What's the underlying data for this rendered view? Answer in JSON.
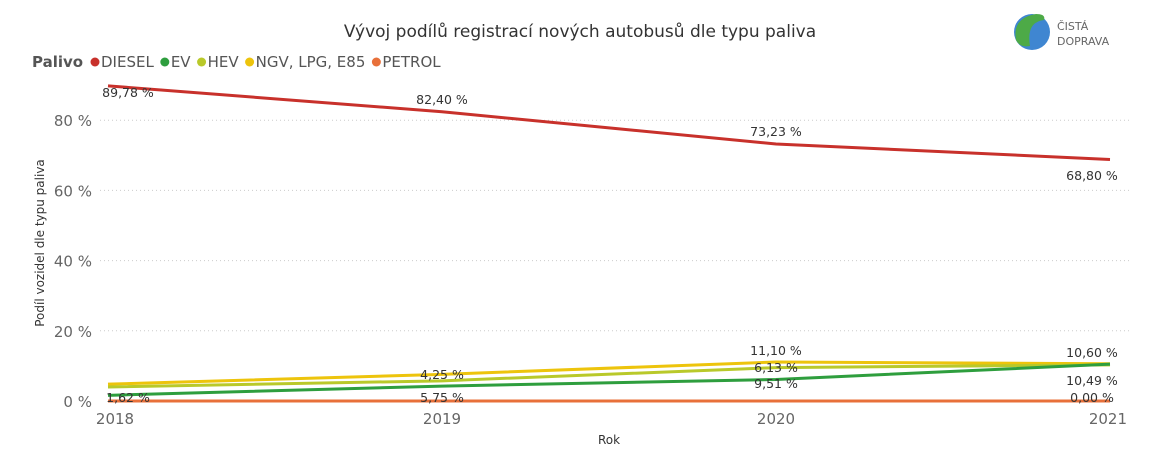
{
  "chart_data": {
    "type": "line",
    "title": "Vývoj podílů registrací nových autobusů dle typu paliva",
    "xlabel": "Rok",
    "ylabel": "Podíl vozidel dle typu paliva",
    "legend_title": "Palivo",
    "legend_position": "top-left",
    "grid": true,
    "ylim": [
      0,
      100
    ],
    "yticks": [
      "0 %",
      "20 %",
      "40 %",
      "60 %",
      "80 %"
    ],
    "x": [
      "2018",
      "2019",
      "2020",
      "2021"
    ],
    "series": [
      {
        "name": "DIESEL",
        "color": "#C8312B",
        "values": [
          89.78,
          82.4,
          73.23,
          68.8
        ],
        "labels": [
          "89,78 %",
          "82,40 %",
          "73,23 %",
          "68,80 %"
        ]
      },
      {
        "name": "EV",
        "color": "#2E9E3E",
        "values": [
          1.62,
          4.25,
          6.13,
          10.49
        ],
        "labels": [
          "1,62 %",
          "4,25 %",
          "6,13 %",
          "10,49 %"
        ]
      },
      {
        "name": "HEV",
        "color": "#B9C92A",
        "values": [
          4.0,
          5.75,
          9.51,
          10.3
        ],
        "labels": [
          "",
          "5,75 %",
          "9,51 %",
          ""
        ]
      },
      {
        "name": "NGV, LPG, E85",
        "color": "#EDC40C",
        "values": [
          4.8,
          7.6,
          11.1,
          10.6
        ],
        "labels": [
          "",
          "",
          "11,10 %",
          "10,60 %"
        ]
      },
      {
        "name": "PETROL",
        "color": "#E8703A",
        "values": [
          0,
          0,
          0,
          0.0
        ],
        "labels": [
          "",
          "",
          "",
          "0,00 %"
        ]
      }
    ]
  },
  "logo": {
    "line1": "ČISTÁ",
    "line2": "DOPRAVA"
  }
}
